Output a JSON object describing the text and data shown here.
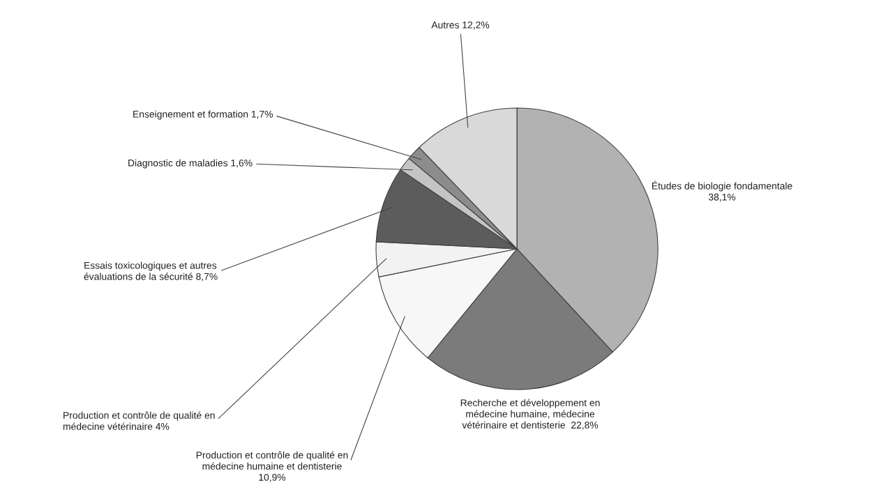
{
  "chart_data": {
    "type": "pie",
    "categories": [
      "Études de biologie fondamentale",
      "Recherche et développement en\nmédecine humaine, médecine\nvétérinaire et dentisterie",
      "Production et contrôle de qualité en\nmédecine humaine et dentisterie",
      "Production et contrôle de qualité en\nmédecine vétérinaire",
      "Essais toxicologiques et autres\névaluations de la sécurité",
      "Diagnostic de maladies",
      "Enseignement et formation",
      "Autres"
    ],
    "values": [
      38.1,
      22.8,
      10.9,
      4,
      8.7,
      1.6,
      1.7,
      12.2
    ],
    "value_labels": [
      "38,1%",
      "22,8%",
      "10,9%",
      "4%",
      "8,7%",
      "1,6%",
      "1,7%",
      "12,2%"
    ],
    "colors": [
      "#b2b2b2",
      "#7b7b7b",
      "#f7f7f7",
      "#f2f2f2",
      "#5c5c5c",
      "#c4c4c4",
      "#8c8c8c",
      "#d9d9d9"
    ],
    "legend": false
  }
}
